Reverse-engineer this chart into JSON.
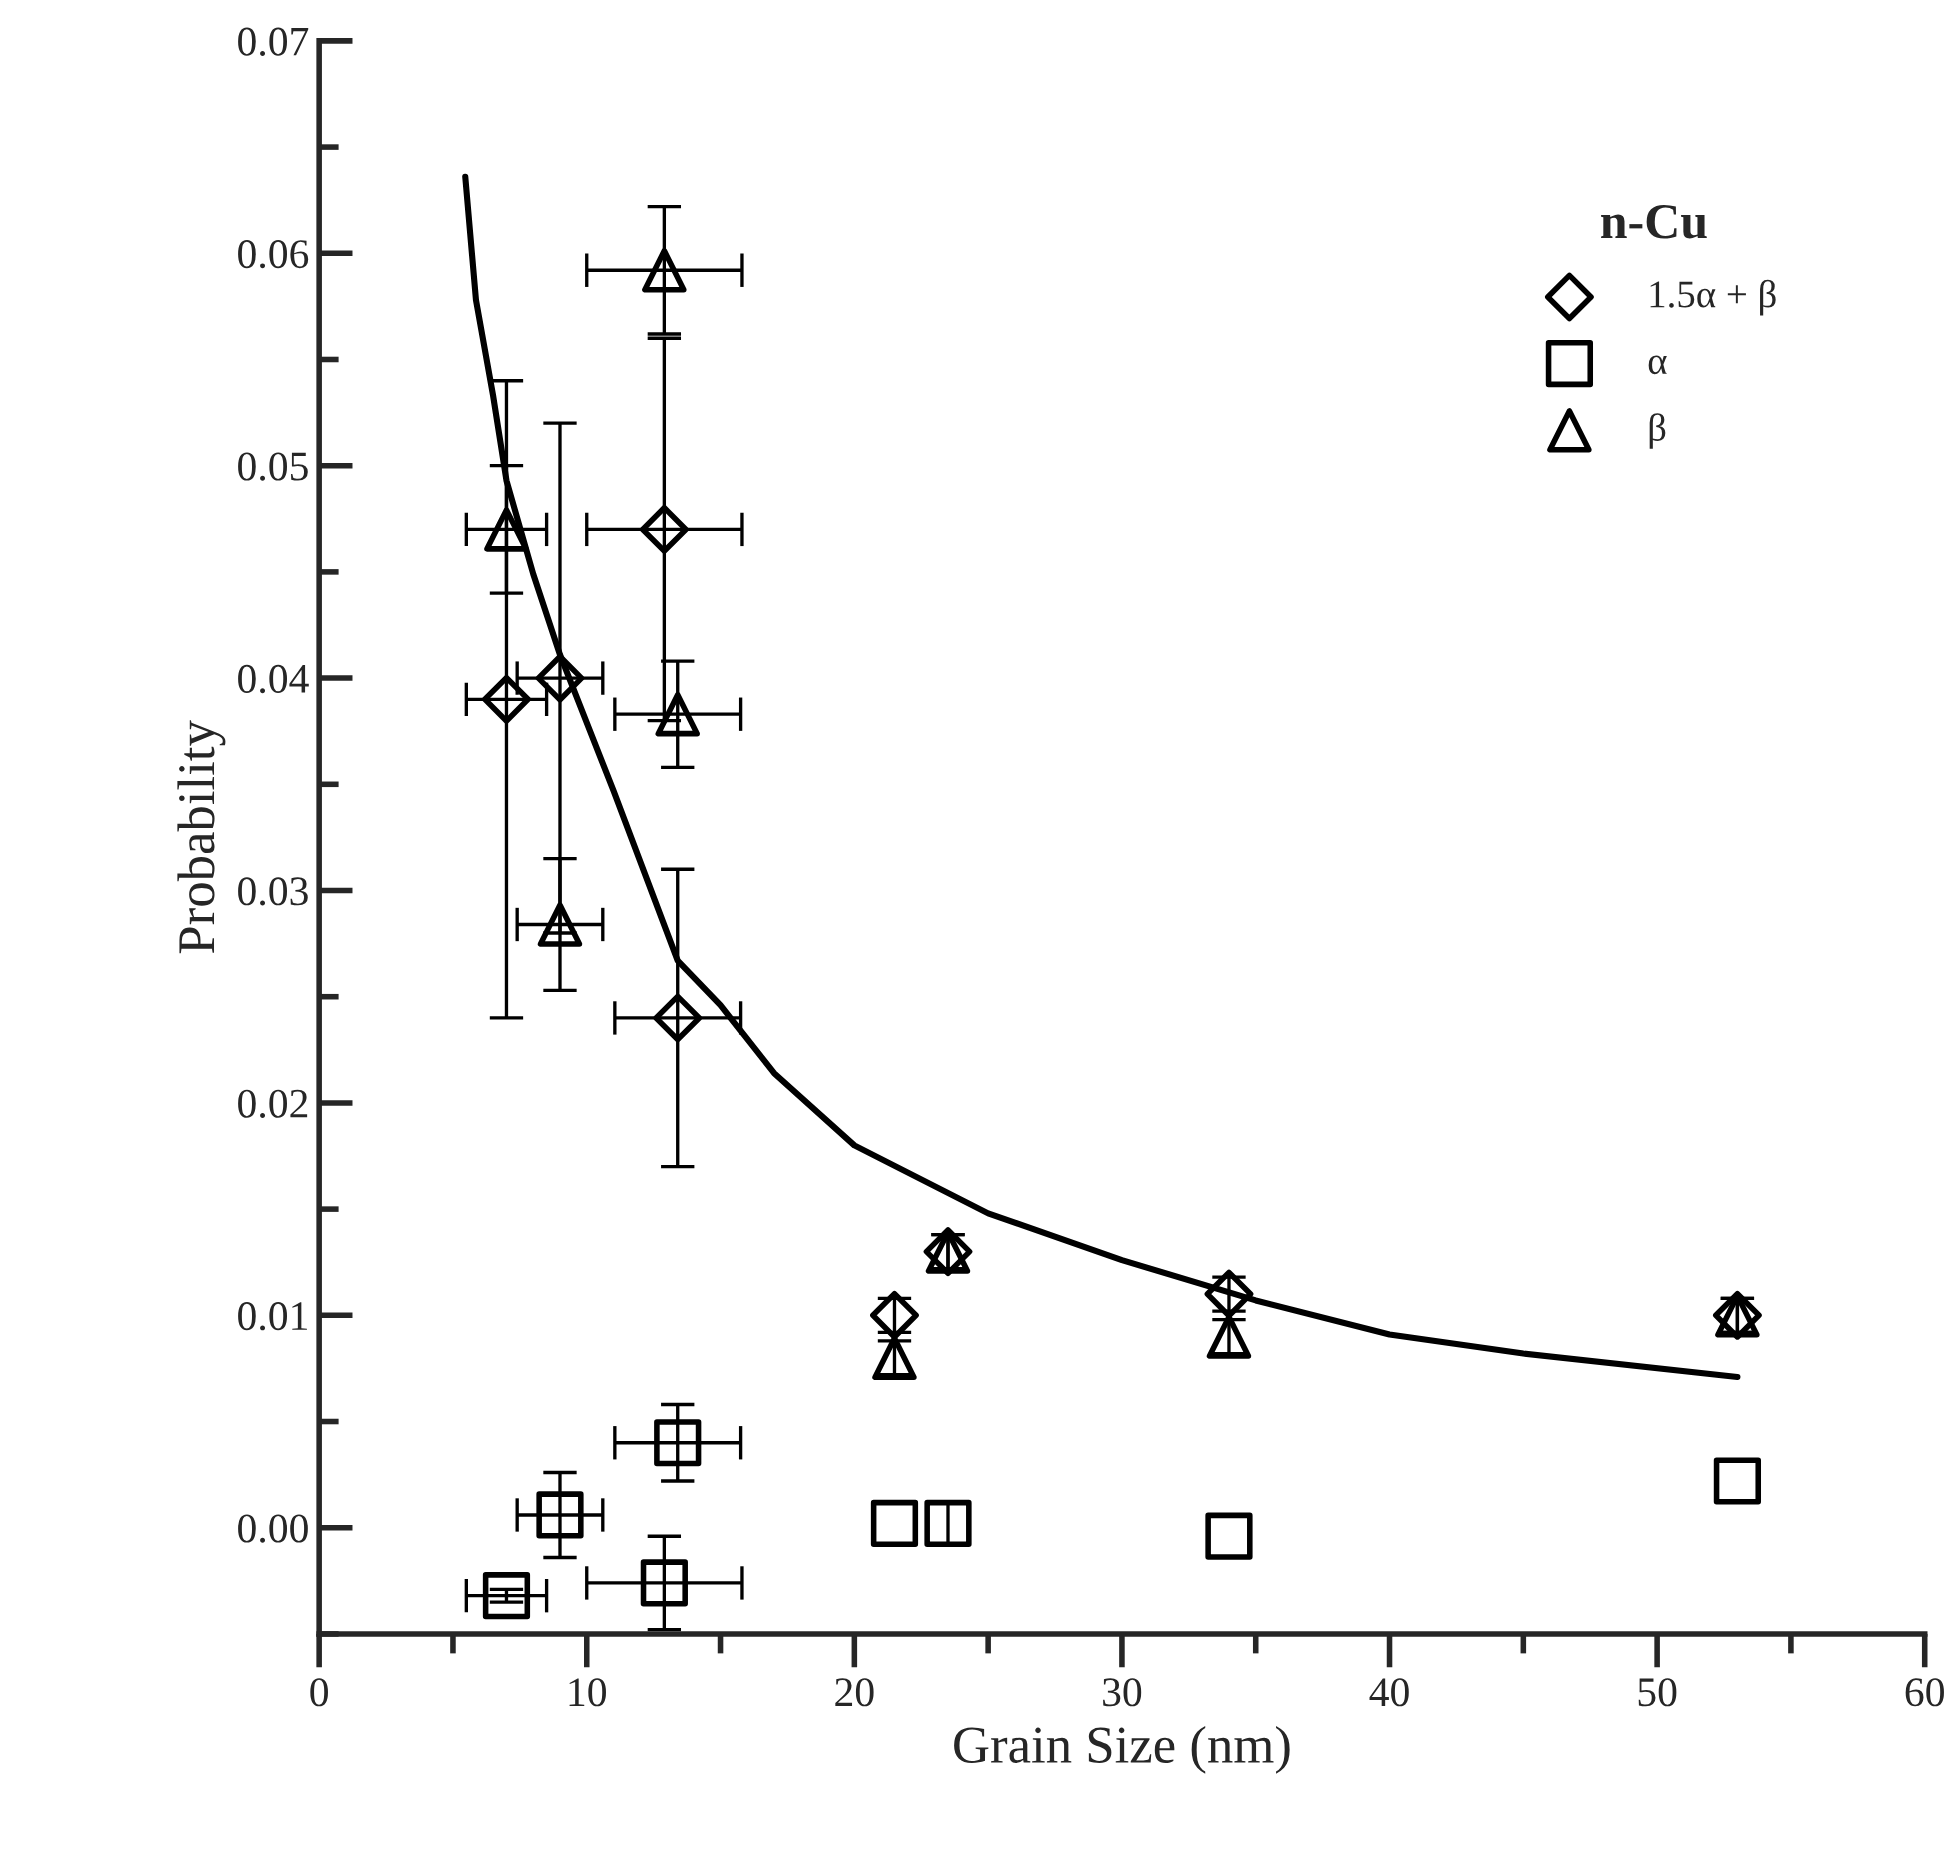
{
  "chart_data": {
    "type": "scatter",
    "xlabel": "Grain Size (nm)",
    "ylabel": "Probability",
    "legend_title": "n-Cu",
    "legend": "top right",
    "grid": false,
    "xlim": [
      0,
      60
    ],
    "ylim": [
      -0.005,
      0.07
    ],
    "xticks": [
      0,
      {
        "value": 5,
        "label": null
      },
      10,
      {
        "value": 15,
        "label": null
      },
      20,
      {
        "value": 25,
        "label": null
      },
      30,
      {
        "value": 35,
        "label": null
      },
      40,
      {
        "value": 45,
        "label": null
      },
      50,
      {
        "value": 55,
        "label": null
      },
      60
    ],
    "yticks": [
      {
        "value": -0.005,
        "label": null
      },
      {
        "value": 0,
        "label": "0.00"
      },
      {
        "value": 0.005,
        "label": null
      },
      {
        "value": 0.01,
        "label": "0.01"
      },
      {
        "value": 0.015,
        "label": null
      },
      {
        "value": 0.02,
        "label": "0.02"
      },
      {
        "value": 0.025,
        "label": null
      },
      {
        "value": 0.03,
        "label": "0.03"
      },
      {
        "value": 0.035,
        "label": null
      },
      {
        "value": 0.04,
        "label": "0.04"
      },
      {
        "value": 0.045,
        "label": null
      },
      {
        "value": 0.05,
        "label": "0.05"
      },
      {
        "value": 0.055,
        "label": null
      },
      {
        "value": 0.06,
        "label": "0.06"
      },
      {
        "value": 0.065,
        "label": null
      },
      {
        "value": 0.07,
        "label": "0.07"
      }
    ],
    "series": [
      {
        "name": "1.5α + β",
        "marker": "diamond",
        "color": "#000000",
        "x": [
          7,
          9,
          12.9,
          13.4,
          21.5,
          23.5,
          34,
          53
        ],
        "values": [
          0.039,
          0.04,
          0.047,
          0.024,
          0.01,
          0.013,
          0.011,
          0.01
        ],
        "errors": [
          0.015,
          0.012,
          0.009,
          0.007,
          0.0008,
          0.0008,
          0.0008,
          0.0008
        ],
        "xerrors": [
          1.5,
          1.6,
          2.9,
          2.35,
          null,
          null,
          null,
          null
        ]
      },
      {
        "name": "α",
        "marker": "square",
        "color": "#000000",
        "x": [
          7,
          9,
          12.9,
          13.4,
          21.5,
          23.5,
          34,
          53
        ],
        "values": [
          -0.0032,
          0.0006,
          -0.0026,
          0.004,
          0.0002,
          0.0002,
          -0.0004,
          0.0022
        ],
        "errors": [
          0.0003,
          0.002,
          0.0022,
          0.0018,
          null,
          0.001,
          null,
          null
        ],
        "xerrors": [
          1.5,
          1.6,
          2.9,
          2.35,
          null,
          null,
          null,
          null
        ]
      },
      {
        "name": "β",
        "marker": "triangle",
        "color": "#000000",
        "x": [
          7,
          9,
          12.9,
          13.4,
          21.5,
          23.5,
          34,
          53
        ],
        "values": [
          0.047,
          0.0284,
          0.0592,
          0.0383,
          0.008,
          0.013,
          0.009,
          0.01
        ],
        "errors": [
          0.003,
          0.0031,
          0.003,
          0.0025,
          0.0008,
          0.0008,
          0.0008,
          0.0008
        ],
        "xerrors": [
          1.5,
          1.6,
          2.9,
          2.35,
          null,
          null,
          null,
          null
        ]
      },
      {
        "type": "line",
        "marker": "none",
        "line_style": "solid",
        "color": "#000000",
        "x": [
          5.46,
          5.86,
          6.5,
          7,
          8,
          9,
          11,
          13.4,
          15,
          17,
          20,
          25,
          30,
          35,
          40,
          45,
          53
        ],
        "values": [
          0.0636,
          0.0578,
          0.0533,
          0.0493,
          0.0449,
          0.0411,
          0.0347,
          0.0267,
          0.0246,
          0.0214,
          0.018,
          0.0148,
          0.0126,
          0.0107,
          0.0091,
          0.0082,
          0.0071
        ]
      }
    ]
  }
}
